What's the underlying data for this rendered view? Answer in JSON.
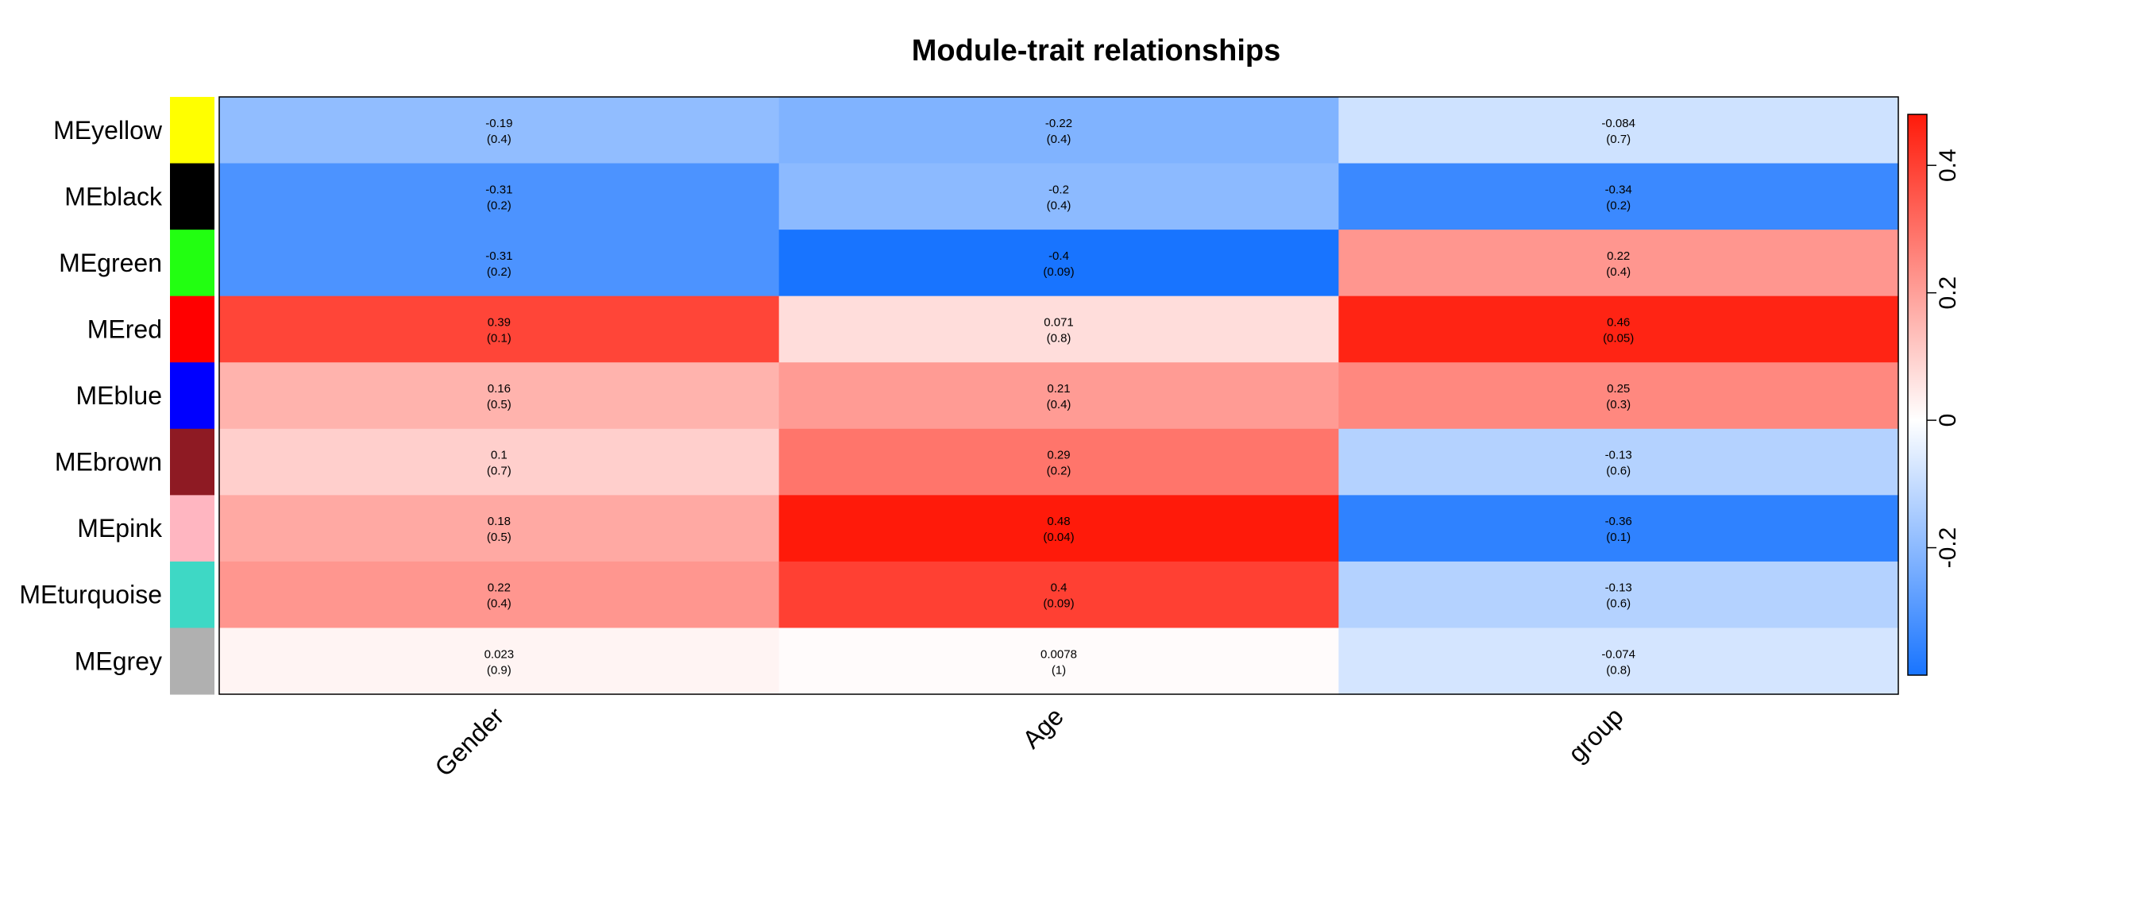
{
  "chart_data": {
    "type": "heatmap",
    "title": "Module-trait relationships",
    "columns": [
      "Gender",
      "Age",
      "group"
    ],
    "rows": [
      {
        "label": "MEyellow",
        "module_color": "#FFFF00"
      },
      {
        "label": "MEblack",
        "module_color": "#000000"
      },
      {
        "label": "MEgreen",
        "module_color": "#22FF11"
      },
      {
        "label": "MEred",
        "module_color": "#FF0000"
      },
      {
        "label": "MEblue",
        "module_color": "#0000FF"
      },
      {
        "label": "MEbrown",
        "module_color": "#8E1A23"
      },
      {
        "label": "MEpink",
        "module_color": "#FFB6C1"
      },
      {
        "label": "MEturquoise",
        "module_color": "#3ED8C5"
      },
      {
        "label": "MEgrey",
        "module_color": "#B0B0B0"
      }
    ],
    "correlations": [
      [
        -0.19,
        -0.22,
        -0.084
      ],
      [
        -0.31,
        -0.2,
        -0.34
      ],
      [
        -0.31,
        -0.4,
        0.22
      ],
      [
        0.39,
        0.071,
        0.46
      ],
      [
        0.16,
        0.21,
        0.25
      ],
      [
        0.1,
        0.29,
        -0.13
      ],
      [
        0.18,
        0.48,
        -0.36
      ],
      [
        0.22,
        0.4,
        -0.13
      ],
      [
        0.023,
        0.0078,
        -0.074
      ]
    ],
    "cell_labels": [
      [
        [
          "-0.19",
          "(0.4)"
        ],
        [
          "-0.22",
          "(0.4)"
        ],
        [
          "-0.084",
          "(0.7)"
        ]
      ],
      [
        [
          "-0.31",
          "(0.2)"
        ],
        [
          "-0.2",
          "(0.4)"
        ],
        [
          "-0.34",
          "(0.2)"
        ]
      ],
      [
        [
          "-0.31",
          "(0.2)"
        ],
        [
          "-0.4",
          "(0.09)"
        ],
        [
          "0.22",
          "(0.4)"
        ]
      ],
      [
        [
          "0.39",
          "(0.1)"
        ],
        [
          "0.071",
          "(0.8)"
        ],
        [
          "0.46",
          "(0.05)"
        ]
      ],
      [
        [
          "0.16",
          "(0.5)"
        ],
        [
          "0.21",
          "(0.4)"
        ],
        [
          "0.25",
          "(0.3)"
        ]
      ],
      [
        [
          "0.1",
          "(0.7)"
        ],
        [
          "0.29",
          "(0.2)"
        ],
        [
          "-0.13",
          "(0.6)"
        ]
      ],
      [
        [
          "0.18",
          "(0.5)"
        ],
        [
          "0.48",
          "(0.04)"
        ],
        [
          "-0.36",
          "(0.1)"
        ]
      ],
      [
        [
          "0.22",
          "(0.4)"
        ],
        [
          "0.4",
          "(0.09)"
        ],
        [
          "-0.13",
          "(0.6)"
        ]
      ],
      [
        [
          "0.023",
          "(0.9)"
        ],
        [
          "0.0078",
          "(1)"
        ],
        [
          "-0.074",
          "(0.8)"
        ]
      ]
    ],
    "colorbar": {
      "range": [
        -0.4,
        0.48
      ],
      "ticks": [
        -0.2,
        0,
        0.2,
        0.4
      ],
      "tick_labels": [
        "-0.2",
        "0",
        "0.2",
        "0.4"
      ],
      "low_color": "#1874FF",
      "mid_color": "#FFFFFF",
      "high_color": "#FF1A0A"
    }
  }
}
